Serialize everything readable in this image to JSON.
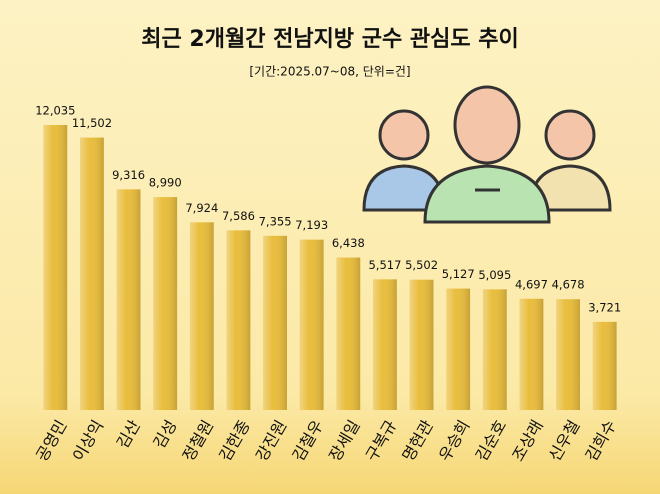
{
  "chart_data": {
    "type": "bar",
    "title": "최근 2개월간 전남지방 군수 관심도 추이",
    "subtitle": "[기간:2025.07~08, 단위=건]",
    "categories": [
      "공영민",
      "이상익",
      "김산",
      "김성",
      "정철원",
      "김한종",
      "강진원",
      "김철우",
      "장세일",
      "구복규",
      "명현관",
      "우승희",
      "김순호",
      "조상래",
      "신우철",
      "김희수"
    ],
    "values": [
      12035,
      11502,
      9316,
      8990,
      7924,
      7586,
      7355,
      7193,
      6438,
      5517,
      5502,
      5127,
      5095,
      4697,
      4678,
      3721
    ],
    "value_labels": [
      "12,035",
      "11,502",
      "9,316",
      "8,990",
      "7,924",
      "7,586",
      "7,355",
      "7,193",
      "6,438",
      "5,517",
      "5,502",
      "5,127",
      "5,095",
      "4,697",
      "4,678",
      "3,721"
    ],
    "color": "#e9bd3c"
  }
}
